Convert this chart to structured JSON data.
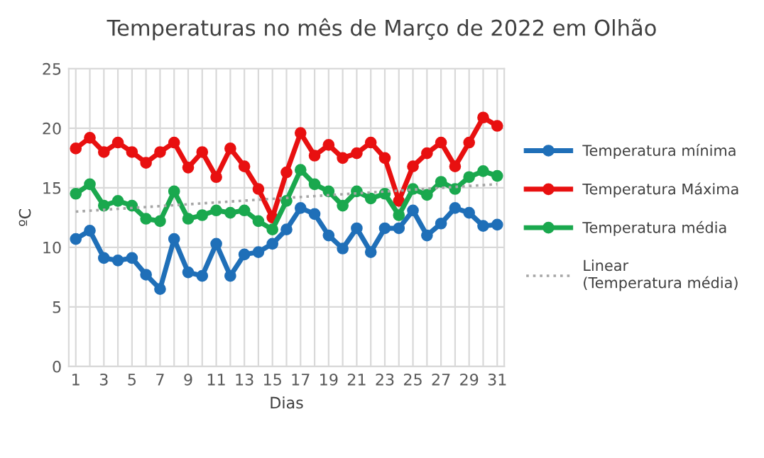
{
  "chart_data": {
    "type": "line",
    "title": "Temperaturas no mês de Março de 2022 em Olhão",
    "xlabel": "Dias",
    "ylabel": "ºC",
    "x": [
      1,
      2,
      3,
      4,
      5,
      6,
      7,
      8,
      9,
      10,
      11,
      12,
      13,
      14,
      15,
      16,
      17,
      18,
      19,
      20,
      21,
      22,
      23,
      24,
      25,
      26,
      27,
      28,
      29,
      30,
      31
    ],
    "series": [
      {
        "name": "Temperatura mínima",
        "color": "#1f6fb8",
        "marker": "circle",
        "values": [
          10.7,
          11.4,
          9.1,
          8.9,
          9.1,
          7.7,
          6.5,
          10.7,
          7.9,
          7.6,
          10.3,
          7.6,
          9.4,
          9.6,
          10.3,
          11.5,
          13.3,
          12.8,
          11.0,
          9.9,
          11.6,
          9.6,
          11.6,
          11.6,
          13.1,
          11.0,
          12.0,
          13.3,
          12.9,
          11.8,
          11.9
        ]
      },
      {
        "name": "Temperatura Máxima",
        "color": "#e81010",
        "marker": "circle",
        "values": [
          18.3,
          19.2,
          18.0,
          18.8,
          18.0,
          17.1,
          18.0,
          18.8,
          16.7,
          18.0,
          15.9,
          18.3,
          16.8,
          14.9,
          12.5,
          16.3,
          19.6,
          17.7,
          18.6,
          17.5,
          17.9,
          18.8,
          17.5,
          13.9,
          16.8,
          17.9,
          18.8,
          16.8,
          18.8,
          20.9,
          20.2
        ]
      },
      {
        "name": "Temperatura média",
        "color": "#1aa84e",
        "marker": "circle",
        "values": [
          14.5,
          15.3,
          13.5,
          13.9,
          13.5,
          12.4,
          12.2,
          14.7,
          12.4,
          12.7,
          13.1,
          12.9,
          13.1,
          12.2,
          11.5,
          13.9,
          16.5,
          15.3,
          14.7,
          13.5,
          14.7,
          14.1,
          14.5,
          12.7,
          14.9,
          14.4,
          15.5,
          14.9,
          15.9,
          16.4,
          16.0
        ]
      },
      {
        "name": "Linear (Temperatura média)",
        "color": "#a6a6a6",
        "marker": "none",
        "line_style": "dotted",
        "x": [
          1,
          31
        ],
        "values": [
          13.0,
          15.3
        ]
      }
    ],
    "xlim": [
      0.5,
      31.5
    ],
    "xticks": [
      1,
      {
        "value": 2,
        "label": null
      },
      3,
      {
        "value": 4,
        "label": null
      },
      5,
      {
        "value": 6,
        "label": null
      },
      7,
      {
        "value": 8,
        "label": null
      },
      9,
      {
        "value": 10,
        "label": null
      },
      11,
      {
        "value": 12,
        "label": null
      },
      13,
      {
        "value": 14,
        "label": null
      },
      15,
      {
        "value": 16,
        "label": null
      },
      17,
      {
        "value": 18,
        "label": null
      },
      19,
      {
        "value": 20,
        "label": null
      },
      21,
      {
        "value": 22,
        "label": null
      },
      23,
      {
        "value": 24,
        "label": null
      },
      25,
      {
        "value": 26,
        "label": null
      },
      27,
      {
        "value": 28,
        "label": null
      },
      29,
      {
        "value": 30,
        "label": null
      },
      31
    ],
    "ylim": [
      0,
      25
    ],
    "yticks": [
      0,
      5,
      10,
      15,
      20,
      25
    ],
    "grid": true,
    "legend": "right"
  }
}
